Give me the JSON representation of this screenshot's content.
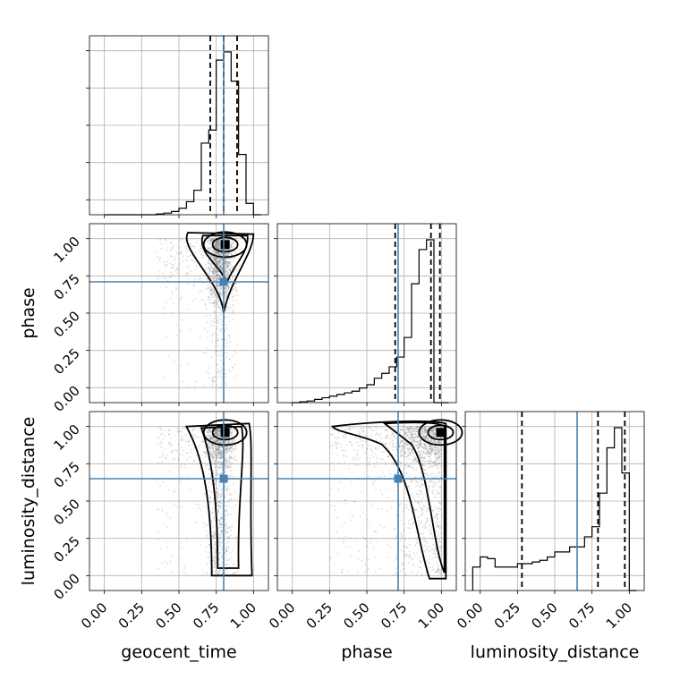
{
  "chart_data": {
    "type": "corner",
    "parameters": [
      "geocent_time",
      "phase",
      "luminosity_distance"
    ],
    "axis_labels": [
      "geocent_time",
      "phase",
      "luminosity_distance"
    ],
    "ticks": [
      0.0,
      0.25,
      0.5,
      0.75,
      1.0
    ],
    "tick_labels": [
      "0.00",
      "0.25",
      "0.50",
      "0.75",
      "1.00"
    ],
    "range": [
      -0.1,
      1.1
    ],
    "grid": true,
    "colors": {
      "truth": "#4682b4",
      "hist": "#000000",
      "points": "#777777"
    },
    "truths": {
      "geocent_time": 0.8,
      "phase": 0.71,
      "luminosity_distance": 0.65
    },
    "quantiles": {
      "geocent_time": [
        0.71,
        0.8,
        0.89
      ],
      "phase": [
        0.69,
        0.93,
        0.99
      ],
      "luminosity_distance": [
        0.28,
        0.79,
        0.97
      ]
    },
    "histograms": {
      "geocent_time": {
        "bin_edges": [
          0.0,
          0.05,
          0.1,
          0.15,
          0.2,
          0.25,
          0.3,
          0.35,
          0.4,
          0.45,
          0.5,
          0.55,
          0.6,
          0.65,
          0.7,
          0.75,
          0.8,
          0.85,
          0.9,
          0.95,
          1.0,
          1.05
        ],
        "counts": [
          0,
          0,
          0,
          0,
          0,
          0,
          0,
          0.005,
          0.01,
          0.02,
          0.04,
          0.08,
          0.15,
          0.44,
          0.52,
          0.95,
          1.0,
          0.82,
          0.37,
          0.07,
          0
        ]
      },
      "phase": {
        "bin_edges": [
          0.0,
          0.05,
          0.1,
          0.15,
          0.2,
          0.25,
          0.3,
          0.35,
          0.4,
          0.45,
          0.5,
          0.55,
          0.6,
          0.65,
          0.7,
          0.75,
          0.8,
          0.85,
          0.9,
          0.95,
          1.0,
          1.05
        ],
        "counts": [
          0,
          0.005,
          0.01,
          0.02,
          0.03,
          0.04,
          0.05,
          0.06,
          0.07,
          0.09,
          0.11,
          0.15,
          0.18,
          0.22,
          0.28,
          0.4,
          0.73,
          0.94,
          1.0,
          0,
          0
        ]
      },
      "luminosity_distance": {
        "bin_edges": [
          -0.05,
          0.0,
          0.05,
          0.1,
          0.15,
          0.2,
          0.25,
          0.3,
          0.35,
          0.4,
          0.45,
          0.5,
          0.55,
          0.6,
          0.65,
          0.7,
          0.75,
          0.8,
          0.85,
          0.9,
          0.95,
          1.0,
          1.05
        ],
        "counts": [
          0.14,
          0.2,
          0.19,
          0.14,
          0.14,
          0.14,
          0.16,
          0.16,
          0.17,
          0.18,
          0.2,
          0.23,
          0.23,
          0.26,
          0.26,
          0.32,
          0.38,
          0.58,
          0.85,
          0.97,
          0.7,
          0
        ]
      }
    }
  }
}
